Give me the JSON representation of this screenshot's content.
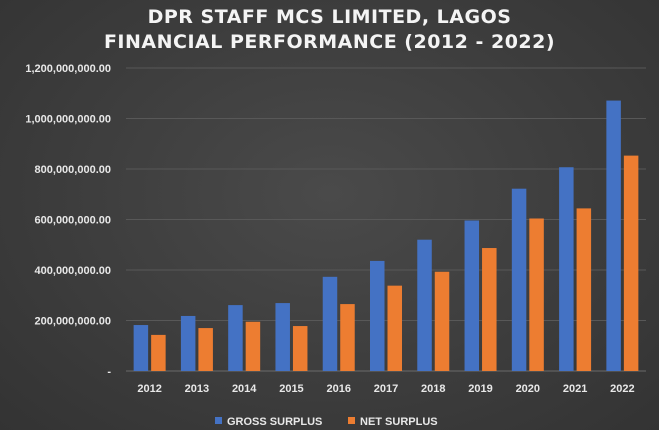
{
  "chart_data": {
    "type": "bar",
    "title_lines": [
      "DPR STAFF MCS LIMITED, LAGOS",
      "FINANCIAL PERFORMANCE (2012 - 2022)"
    ],
    "categories": [
      "2012",
      "2013",
      "2014",
      "2015",
      "2016",
      "2017",
      "2018",
      "2019",
      "2020",
      "2021",
      "2022"
    ],
    "series": [
      {
        "name": "GROSS SURPLUS",
        "color": "#4472c4",
        "values": [
          182000000,
          218000000,
          261000000,
          269000000,
          373000000,
          436000000,
          520000000,
          596000000,
          722000000,
          807000000,
          1071000000
        ]
      },
      {
        "name": "NET SURPLUS",
        "color": "#ed7d31",
        "values": [
          143000000,
          170000000,
          195000000,
          178000000,
          265000000,
          338000000,
          393000000,
          487000000,
          604000000,
          644000000,
          853000000
        ]
      }
    ],
    "ylim": [
      0,
      1200000000
    ],
    "y_ticks": [
      0,
      200000000,
      400000000,
      600000000,
      800000000,
      1000000000,
      1200000000
    ],
    "y_tick_labels": [
      "-",
      "200,000,000.00",
      "400,000,000.00",
      "600,000,000.00",
      "800,000,000.00",
      "1,000,000,000.00",
      "1,200,000,000.00"
    ],
    "xlabel": "",
    "ylabel": "",
    "grid": true,
    "legend_position": "bottom"
  }
}
